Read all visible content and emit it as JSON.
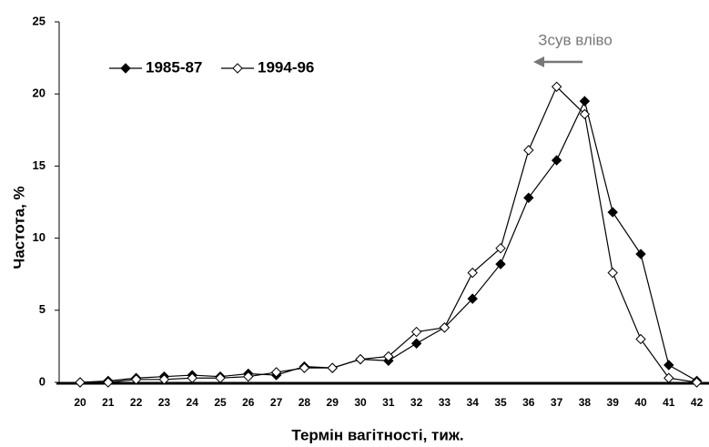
{
  "chart_data": {
    "type": "line",
    "annotation": "Зсув вліво",
    "xlabel": "Термін вагітності, тиж.",
    "ylabel": "Частота, %",
    "categories": [
      "20",
      "21",
      "22",
      "23",
      "24",
      "25",
      "26",
      "27",
      "28",
      "29",
      "30",
      "31",
      "32",
      "33",
      "34",
      "35",
      "36",
      "37",
      "38",
      "39",
      "40",
      "41",
      "42"
    ],
    "series": [
      {
        "name": "1985-87",
        "color": "#000000",
        "marker": "filled-diamond",
        "values": [
          0,
          0.1,
          0.3,
          0.4,
          0.5,
          0.4,
          0.6,
          0.5,
          1.1,
          1.0,
          1.6,
          1.5,
          2.7,
          3.8,
          5.8,
          8.2,
          12.8,
          15.4,
          19.5,
          11.8,
          8.9,
          1.2,
          0.1
        ]
      },
      {
        "name": "1994-96",
        "color": "#000000",
        "marker": "open-diamond",
        "values": [
          0,
          0,
          0.2,
          0.2,
          0.3,
          0.3,
          0.4,
          0.7,
          1.0,
          1.0,
          1.6,
          1.8,
          3.5,
          3.8,
          7.6,
          9.3,
          16.1,
          20.5,
          18.6,
          7.6,
          3.0,
          0.3,
          0
        ]
      }
    ],
    "ylim": [
      0,
      25
    ],
    "yticks": [
      0,
      5,
      10,
      15,
      20,
      25
    ],
    "grid": false,
    "legend": "top-left"
  }
}
